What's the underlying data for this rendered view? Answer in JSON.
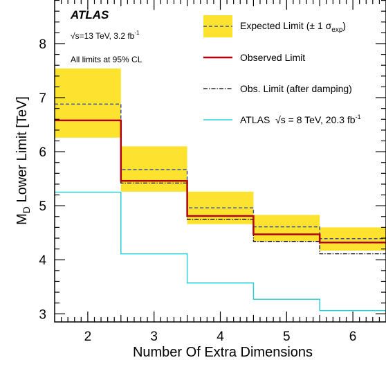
{
  "colors": {
    "band": "#fde22e",
    "expected": "#3e4fa6",
    "observed": "#b0000f",
    "damped": "#000000",
    "run1": "#2bcfd6"
  },
  "labels": {
    "experiment": "ATLAS",
    "energy_sqrt": "√s",
    "energy_rest": "=13 TeV, 3.2 fb",
    "energy_sup": "-1",
    "confidence": "All limits at 95% CL"
  },
  "legend": {
    "expected_main": "Expected Limit (± 1 σ",
    "expected_sub": "exp",
    "expected_close": ")",
    "observed": "Observed Limit",
    "damped": "Obs. Limit (after damping)",
    "run1_prefix": "ATLAS  ",
    "run1_sqrt": "√s",
    "run1_rest": " = 8 TeV, 20.3 fb",
    "run1_sup": "-1"
  },
  "chart_data": {
    "type": "line",
    "step": true,
    "xlabel": "Number Of Extra Dimensions",
    "ylabel_main": "M",
    "ylabel_sub": "D",
    "ylabel_rest": " Lower Limit [TeV]",
    "xlim": [
      1.5,
      6.5
    ],
    "ylim": [
      2.85,
      8.82
    ],
    "xticks": [
      2,
      3,
      4,
      5,
      6
    ],
    "yticks": [
      3,
      4,
      5,
      6,
      7,
      8
    ],
    "x": [
      2,
      3,
      4,
      5,
      6
    ],
    "series": [
      {
        "name": "Expected Limit (± 1 σexp)",
        "role": "expected",
        "values": [
          6.88,
          5.67,
          4.96,
          4.61,
          4.39
        ]
      },
      {
        "name": "Expected ± 1σ band low",
        "role": "band_low",
        "values": [
          6.26,
          5.26,
          4.66,
          4.34,
          4.17
        ]
      },
      {
        "name": "Expected ± 1σ band high",
        "role": "band_high",
        "values": [
          7.54,
          6.1,
          5.26,
          4.83,
          4.6
        ]
      },
      {
        "name": "Observed Limit",
        "role": "observed",
        "values": [
          6.58,
          5.46,
          4.81,
          4.47,
          4.32
        ]
      },
      {
        "name": "Obs. Limit (after damping)",
        "role": "damped",
        "values": [
          6.58,
          5.42,
          4.75,
          4.34,
          4.11
        ]
      },
      {
        "name": "ATLAS √s = 8 TeV, 20.3 fb-1",
        "role": "run1",
        "values": [
          5.25,
          4.11,
          3.57,
          3.27,
          3.06
        ]
      }
    ]
  }
}
